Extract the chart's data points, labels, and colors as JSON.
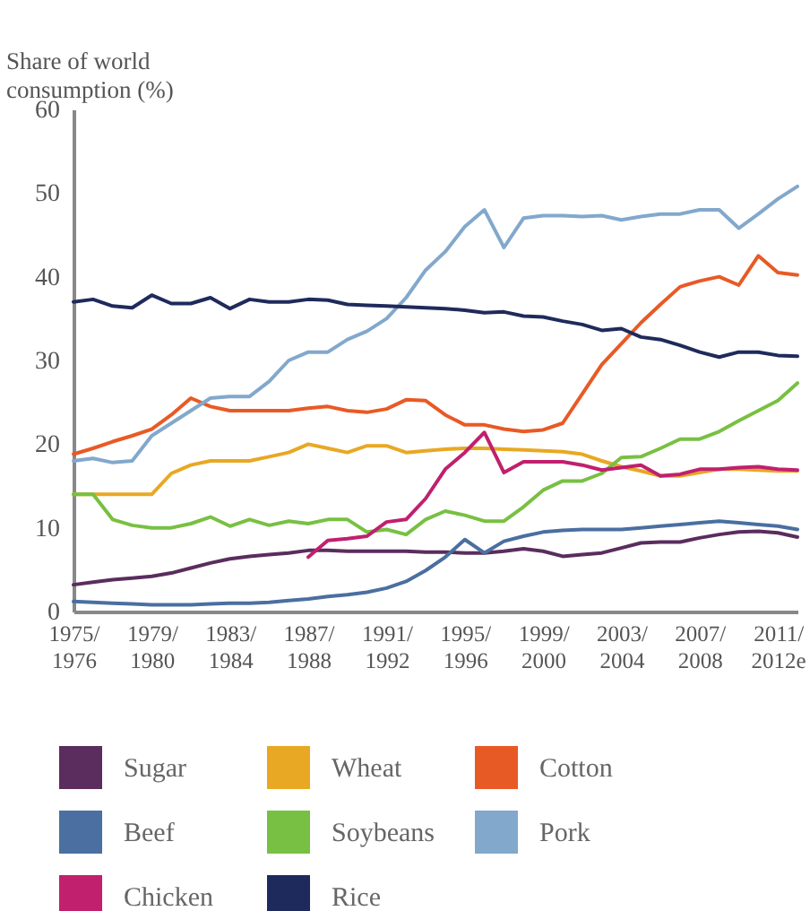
{
  "chart_data": {
    "type": "line",
    "ylabel": "Share of world consumption (%)",
    "categories": [
      "1975/\n1976",
      null,
      null,
      null,
      "1979/\n1980",
      null,
      null,
      null,
      "1983/\n1984",
      null,
      null,
      null,
      "1987/\n1988",
      null,
      null,
      null,
      "1991/\n1992",
      null,
      null,
      null,
      "1995/\n1996",
      null,
      null,
      null,
      "1999/\n2000",
      null,
      null,
      null,
      "2003/\n2004",
      null,
      null,
      null,
      "2007/\n2008",
      null,
      null,
      null,
      "2011/\n2012e",
      null
    ],
    "ylim": [
      0,
      60
    ],
    "yticks": [
      0,
      10,
      20,
      30,
      40,
      50,
      60
    ],
    "grid": false,
    "legend": "bottom",
    "marker": "none",
    "line_style": "solid",
    "series": [
      {
        "name": "Sugar",
        "color": "#5a2d5e",
        "values": [
          3.2,
          3.5,
          3.8,
          4,
          4.2,
          4.6,
          5.2,
          5.8,
          6.3,
          6.6,
          6.8,
          7,
          7.3,
          7.3,
          7.2,
          7.2,
          7.2,
          7.2,
          7.1,
          7.1,
          7,
          7,
          7.2,
          7.5,
          7.2,
          6.6,
          6.8,
          7,
          7.6,
          8.2,
          8.3,
          8.3,
          8.8,
          9.2,
          9.5,
          9.6,
          9.4,
          8.9
        ]
      },
      {
        "name": "Wheat",
        "color": "#e8a823",
        "values": [
          14,
          14,
          14,
          14,
          14,
          16.5,
          17.5,
          18,
          18,
          18,
          18.5,
          19,
          20,
          19.5,
          19,
          19.8,
          19.8,
          19,
          19.2,
          19.4,
          19.5,
          19.5,
          19.4,
          19.3,
          19.2,
          19.1,
          18.8,
          18,
          17.3,
          16.8,
          16.2,
          16.2,
          16.6,
          17,
          17,
          16.9,
          16.8,
          16.8
        ]
      },
      {
        "name": "Cotton",
        "color": "#e85a25",
        "values": [
          18.8,
          19.5,
          20.3,
          21,
          21.8,
          23.5,
          25.5,
          24.5,
          24,
          24,
          24,
          24,
          24.3,
          24.5,
          24,
          23.8,
          24.2,
          25.3,
          25.2,
          23.5,
          22.3,
          22.3,
          21.8,
          21.5,
          21.7,
          22.5,
          26,
          29.5,
          32,
          34.5,
          36.7,
          38.8,
          39.5,
          40,
          39,
          42.5,
          40.5,
          40.2
        ]
      },
      {
        "name": "Beef",
        "color": "#4a6fa0",
        "values": [
          1.2,
          1.1,
          1,
          0.9,
          0.8,
          0.8,
          0.8,
          0.9,
          1,
          1,
          1.1,
          1.3,
          1.5,
          1.8,
          2,
          2.3,
          2.8,
          3.6,
          4.9,
          6.5,
          8.6,
          7,
          8.4,
          9,
          9.5,
          9.7,
          9.8,
          9.8,
          9.8,
          10,
          10.2,
          10.4,
          10.6,
          10.8,
          10.6,
          10.4,
          10.2,
          9.8
        ]
      },
      {
        "name": "Soybeans",
        "color": "#78c043",
        "values": [
          14,
          14,
          11,
          10.3,
          10,
          10,
          10.5,
          11.3,
          10.2,
          11,
          10.3,
          10.8,
          10.5,
          11,
          11,
          9.5,
          9.8,
          9.2,
          11,
          12,
          11.5,
          10.8,
          10.8,
          12.5,
          14.5,
          15.6,
          15.6,
          16.5,
          18.4,
          18.5,
          19.5,
          20.6,
          20.6,
          21.5,
          22.8,
          24,
          25.2,
          27.3
        ]
      },
      {
        "name": "Pork",
        "color": "#82a8cc",
        "values": [
          18,
          18.3,
          17.8,
          18,
          21,
          22.5,
          24,
          25.5,
          25.7,
          25.7,
          27.5,
          30,
          31,
          31,
          32.5,
          33.5,
          35,
          37.5,
          40.8,
          43,
          46,
          48,
          43.5,
          47,
          47.3,
          47.3,
          47.2,
          47.3,
          46.8,
          47.2,
          47.5,
          47.5,
          48,
          48,
          45.8,
          47.5,
          49.3,
          50.8
        ]
      },
      {
        "name": "Chicken",
        "color": "#c0206e",
        "values": [
          null,
          null,
          null,
          null,
          null,
          null,
          null,
          null,
          null,
          null,
          null,
          null,
          6.5,
          8.5,
          8.7,
          9,
          10.7,
          11,
          13.5,
          17,
          19,
          21.4,
          16.6,
          17.9,
          17.9,
          17.9,
          17.5,
          16.9,
          17.2,
          17.5,
          16.2,
          16.4,
          17,
          17,
          17.2,
          17.3,
          17,
          16.9
        ]
      },
      {
        "name": "Rice",
        "color": "#1f2a5c",
        "values": [
          37,
          37.3,
          36.5,
          36.3,
          37.8,
          36.8,
          36.8,
          37.5,
          36.2,
          37.3,
          37,
          37,
          37.3,
          37.2,
          36.7,
          36.6,
          36.5,
          36.4,
          36.3,
          36.2,
          36,
          35.7,
          35.8,
          35.3,
          35.2,
          34.7,
          34.3,
          33.6,
          33.8,
          32.8,
          32.5,
          31.8,
          31,
          30.4,
          31,
          31,
          30.6,
          30.5
        ]
      }
    ]
  }
}
